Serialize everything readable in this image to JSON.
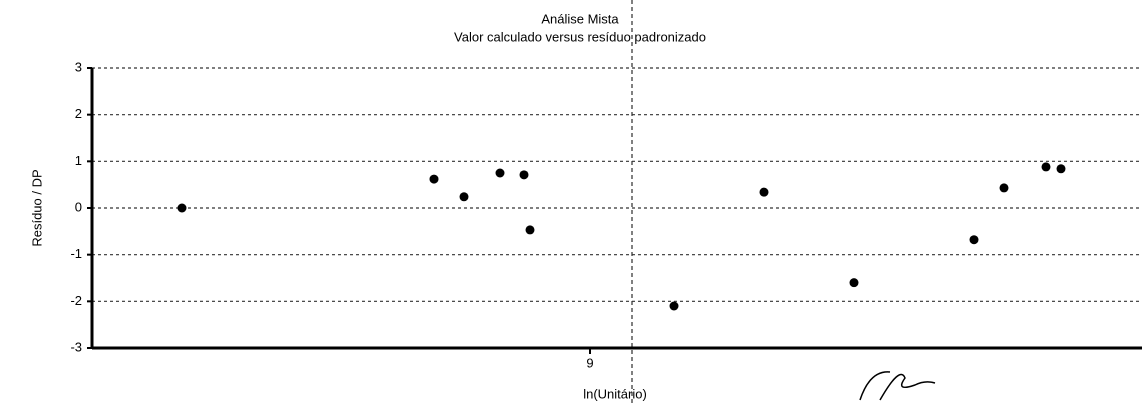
{
  "chart_data": {
    "type": "scatter",
    "title": "Análise Mista",
    "subtitle": "Valor calculado versus resíduo padronizado",
    "x_label": "ln(Unitário)",
    "y_label": "Resíduo / DP",
    "color": "#000000",
    "grid": true,
    "xlim": [
      7.34,
      10.84
    ],
    "xticks": [
      9
    ],
    "ylim": [
      -3,
      3
    ],
    "yticks": [
      3,
      2,
      1,
      0,
      -1,
      -2,
      -3
    ],
    "x": [
      7.64,
      8.48,
      8.58,
      8.7,
      8.78,
      8.8,
      9.28,
      9.58,
      9.88,
      10.28,
      10.38,
      10.52,
      10.57
    ],
    "values": [
      0.0,
      0.62,
      0.24,
      0.75,
      0.71,
      -0.47,
      -2.1,
      0.34,
      -1.6,
      -0.68,
      0.43,
      0.88,
      0.84
    ]
  }
}
